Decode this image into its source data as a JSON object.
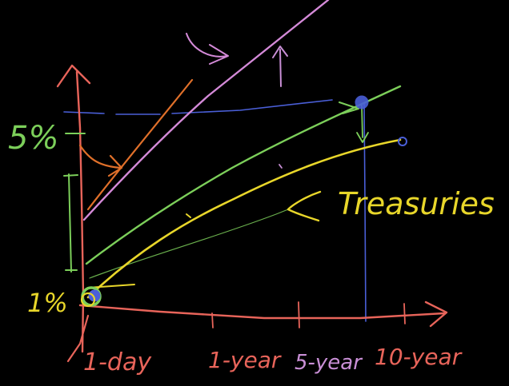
{
  "labels": {
    "five_percent": "5%",
    "one_percent": "1%",
    "treasuries": "Treasuries",
    "x_ticks": [
      "1-day",
      "1-year",
      "5-year",
      "10-year"
    ]
  },
  "colors": {
    "background": "#000000",
    "axis": "#e8645a",
    "x_tick_labels": "#e8645a",
    "five_year_label": "#c98fd6",
    "green_curve": "#7ccf5a",
    "yellow_curve": "#e8d62a",
    "pink_curve": "#d48ad8",
    "orange": "#e0702a",
    "blue_guides": "#4a5fd8",
    "marks": "#c98fd6"
  },
  "icons": {
    "pink_curl_arrow": "curl-arrow-icon",
    "orange_arrow": "bent-arrow-icon",
    "up_arrow": "up-arrow-icon",
    "green_down_arrow": "down-arrow-icon",
    "treasury_bracket": "bracket-arrow-icon"
  }
}
